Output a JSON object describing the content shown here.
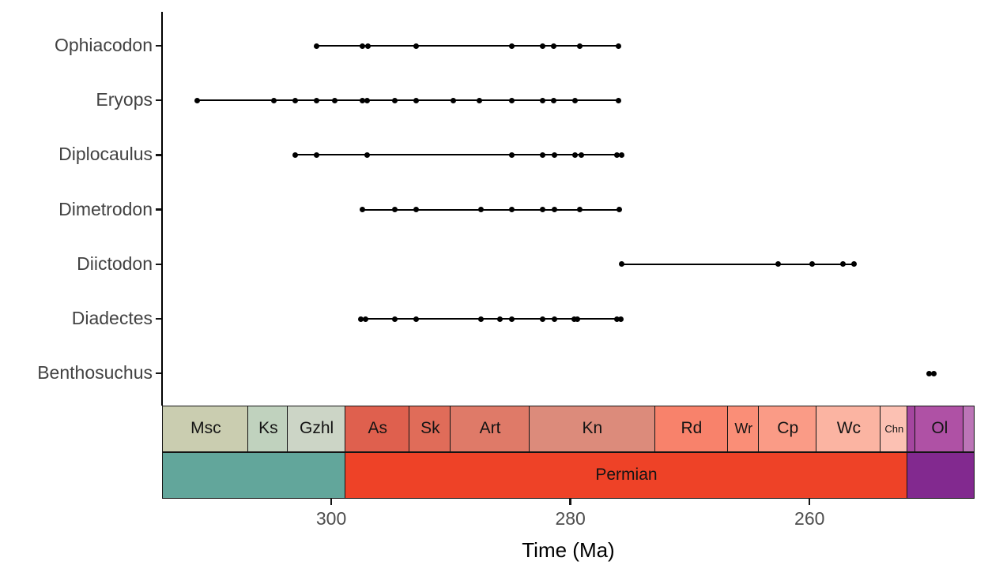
{
  "chart_data": {
    "type": "scatter",
    "description": "Fossil occurrence ranges per taxon through geologic time with stage and period bars (deeptime-style plot)",
    "title": "",
    "xlabel": "Time (Ma)",
    "ylabel": "",
    "x_axis_reversed": true,
    "x_range_ma": [
      314.15,
      246.2
    ],
    "x_ticks": [
      {
        "value": 300,
        "label": "300"
      },
      {
        "value": 280,
        "label": "280"
      },
      {
        "value": 260,
        "label": "260"
      }
    ],
    "point_color": "#000000",
    "line_color": "#000000",
    "taxa": [
      {
        "name": "Ophiacodon",
        "occurrences_ma": [
          301.2,
          297.4,
          296.9,
          292.9,
          284.9,
          282.3,
          281.4,
          279.2,
          276.0
        ]
      },
      {
        "name": "Eryops",
        "occurrences_ma": [
          311.2,
          304.8,
          303.0,
          301.2,
          299.7,
          297.4,
          297.0,
          294.7,
          292.9,
          289.8,
          287.6,
          284.9,
          282.3,
          281.4,
          279.6,
          276.0
        ]
      },
      {
        "name": "Diplocaulus",
        "occurrences_ma": [
          303.0,
          301.2,
          297.0,
          284.9,
          282.3,
          281.3,
          279.6,
          279.1,
          276.1,
          275.7
        ]
      },
      {
        "name": "Dimetrodon",
        "occurrences_ma": [
          297.4,
          294.7,
          292.9,
          287.5,
          284.9,
          282.3,
          281.3,
          279.2,
          275.9
        ]
      },
      {
        "name": "Diictodon",
        "occurrences_ma": [
          275.7,
          262.6,
          259.8,
          257.2,
          256.3
        ]
      },
      {
        "name": "Diadectes",
        "occurrences_ma": [
          297.5,
          297.1,
          294.7,
          292.9,
          287.5,
          285.9,
          284.9,
          282.3,
          281.3,
          279.7,
          279.4,
          276.1,
          275.8
        ]
      },
      {
        "name": "Benthosuchus",
        "occurrences_ma": [
          250.0,
          249.6
        ]
      }
    ],
    "stage_bar": [
      {
        "label": "Msc",
        "start_ma": 314.15,
        "end_ma": 307.0,
        "color": "#CACDB0"
      },
      {
        "label": "Ks",
        "start_ma": 307.0,
        "end_ma": 303.7,
        "color": "#C0D2BE"
      },
      {
        "label": "Gzhl",
        "start_ma": 303.7,
        "end_ma": 298.9,
        "color": "#CCD5C6"
      },
      {
        "label": "As",
        "start_ma": 298.9,
        "end_ma": 293.5,
        "color": "#DF604E"
      },
      {
        "label": "Sk",
        "start_ma": 293.5,
        "end_ma": 290.1,
        "color": "#E06C59"
      },
      {
        "label": "Art",
        "start_ma": 290.1,
        "end_ma": 283.5,
        "color": "#DF7A68"
      },
      {
        "label": "Kn",
        "start_ma": 283.5,
        "end_ma": 273.0,
        "color": "#DC8B7B"
      },
      {
        "label": "Rd",
        "start_ma": 273.0,
        "end_ma": 266.9,
        "color": "#F8826B"
      },
      {
        "label": "Wr",
        "start_ma": 266.9,
        "end_ma": 264.3,
        "color": "#FA8E77"
      },
      {
        "label": "Cp",
        "start_ma": 264.3,
        "end_ma": 259.5,
        "color": "#FA9B86"
      },
      {
        "label": "Wc",
        "start_ma": 259.5,
        "end_ma": 254.1,
        "color": "#FBB4A2"
      },
      {
        "label": "Chn",
        "start_ma": 254.1,
        "end_ma": 251.9,
        "color": "#FCC1B3"
      },
      {
        "label": "",
        "start_ma": 251.9,
        "end_ma": 251.2,
        "color": "#A4469F"
      },
      {
        "label": "Ol",
        "start_ma": 251.2,
        "end_ma": 247.2,
        "color": "#AF51A5"
      },
      {
        "label": "",
        "start_ma": 247.2,
        "end_ma": 246.2,
        "color": "#BC75B7"
      }
    ],
    "period_bar": [
      {
        "label": "",
        "start_ma": 314.15,
        "end_ma": 298.9,
        "color": "#62A69B"
      },
      {
        "label": "Permian",
        "start_ma": 298.9,
        "end_ma": 251.9,
        "color": "#EE4227"
      },
      {
        "label": "",
        "start_ma": 251.9,
        "end_ma": 246.2,
        "color": "#82298F"
      }
    ]
  }
}
